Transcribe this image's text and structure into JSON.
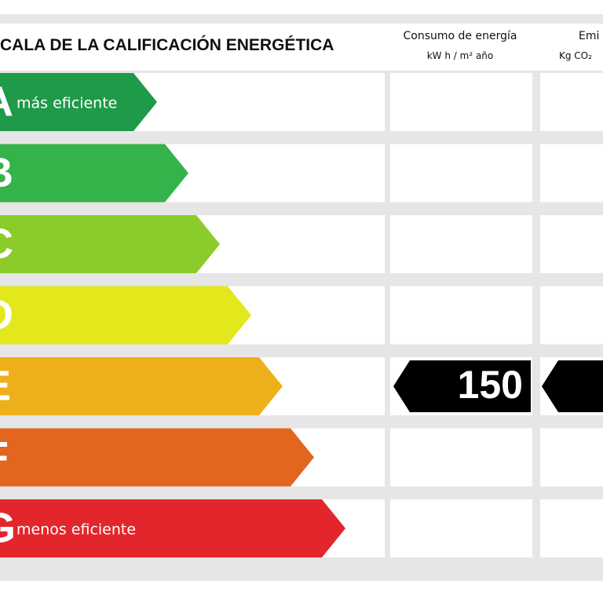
{
  "header": {
    "title": "CALA DE LA CALIFICACIÓN ENERGÉTICA",
    "consumption_title": "Consumo de energía",
    "consumption_unit": "kW h / m² año",
    "emissions_title": "Emi",
    "emissions_unit": "Kg CO₂"
  },
  "rows": [
    {
      "letter": "A",
      "note": "más eficiente"
    },
    {
      "letter": "B"
    },
    {
      "letter": "C"
    },
    {
      "letter": "D"
    },
    {
      "letter": "E",
      "consumption": "150"
    },
    {
      "letter": "F"
    },
    {
      "letter": "G",
      "note": "menos eficiente"
    }
  ]
}
